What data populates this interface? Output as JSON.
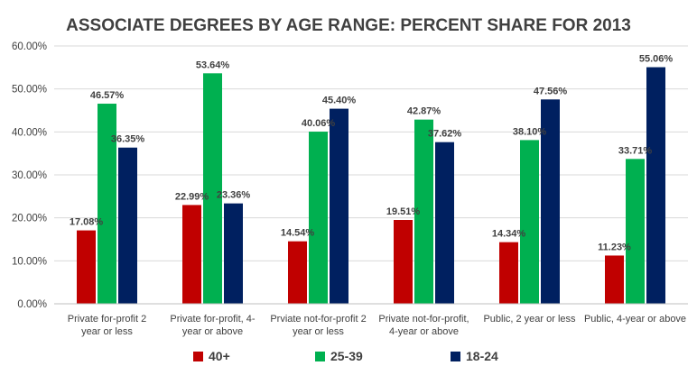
{
  "chart_data": {
    "type": "bar",
    "title": "ASSOCIATE DEGREES BY AGE RANGE: PERCENT SHARE FOR 2013",
    "xlabel": "",
    "ylabel": "",
    "ylim": [
      0,
      60
    ],
    "yticks": [
      "0.00%",
      "10.00%",
      "20.00%",
      "30.00%",
      "40.00%",
      "50.00%",
      "60.00%"
    ],
    "grid": true,
    "legend_position": "bottom",
    "categories": [
      [
        "Private for-profit 2",
        "year or less"
      ],
      [
        "Private for-profit, 4-",
        "year or above"
      ],
      [
        "Prviate not-for-profit 2",
        "year or less"
      ],
      [
        "Private not-for-profit,",
        "4-year or above"
      ],
      [
        "Public, 2 year or less"
      ],
      [
        "Public, 4-year or above"
      ]
    ],
    "series": [
      {
        "name": "40+",
        "color": "#c00000",
        "values": [
          17.08,
          22.99,
          14.54,
          19.51,
          14.34,
          11.23
        ],
        "labels": [
          "17.08%",
          "22.99%",
          "14.54%",
          "19.51%",
          "14.34%",
          "11.23%"
        ]
      },
      {
        "name": "25-39",
        "color": "#00b050",
        "values": [
          46.57,
          53.64,
          40.06,
          42.87,
          38.1,
          33.71
        ],
        "labels": [
          "46.57%",
          "53.64%",
          "40.06%",
          "42.87%",
          "38.10%",
          "33.71%"
        ]
      },
      {
        "name": "18-24",
        "color": "#002060",
        "values": [
          36.35,
          23.36,
          45.4,
          37.62,
          47.56,
          55.06
        ],
        "labels": [
          "36.35%",
          "23.36%",
          "45.40%",
          "37.62%",
          "47.56%",
          "55.06%"
        ]
      }
    ]
  }
}
